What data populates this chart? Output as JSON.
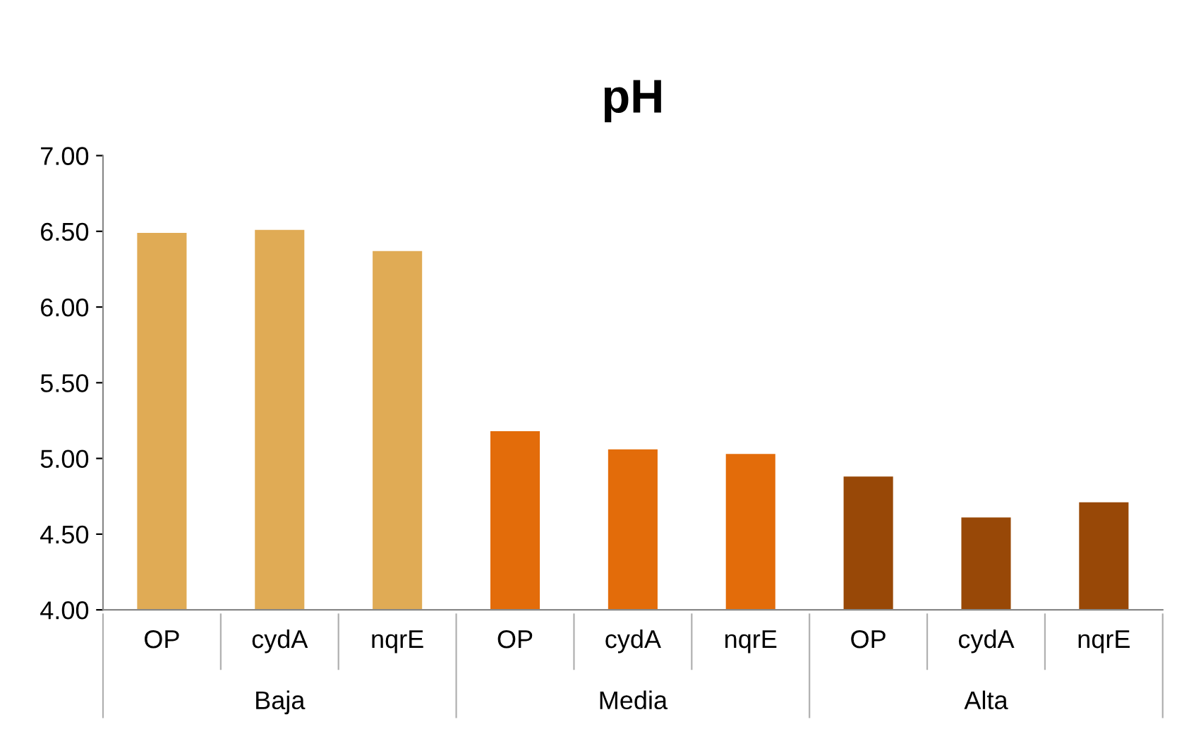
{
  "chart_data": {
    "type": "bar",
    "title": "pH",
    "categories": [
      "OP",
      "cydA",
      "nqrE",
      "OP",
      "cydA",
      "nqrE",
      "OP",
      "cydA",
      "nqrE"
    ],
    "values": [
      6.49,
      6.51,
      6.37,
      5.18,
      5.06,
      5.03,
      4.88,
      4.61,
      4.71
    ],
    "colors": [
      "#e0ab55",
      "#e0ab55",
      "#e0ab55",
      "#e36c0a",
      "#e36c0a",
      "#e36c0a",
      "#984807",
      "#984807",
      "#984807"
    ],
    "annotations": [
      "Baja",
      "Media",
      "Alta"
    ],
    "ylim": [
      4.0,
      7.0
    ],
    "yticks": [
      {
        "value": 4.0,
        "label": "4.00"
      },
      {
        "value": 4.5,
        "label": "4.50"
      },
      {
        "value": 5.0,
        "label": "5.00"
      },
      {
        "value": 5.5,
        "label": "5.50"
      },
      {
        "value": 6.0,
        "label": "6.00"
      },
      {
        "value": 6.5,
        "label": "6.50"
      },
      {
        "value": 7.0,
        "label": "7.00"
      }
    ],
    "grid": false,
    "legend": false
  }
}
